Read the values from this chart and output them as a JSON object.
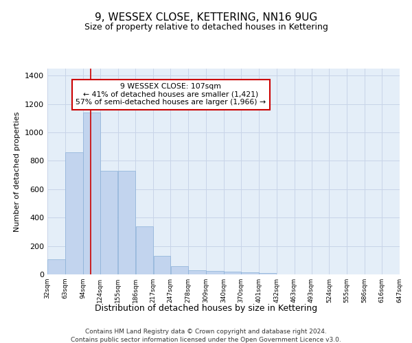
{
  "title": "9, WESSEX CLOSE, KETTERING, NN16 9UG",
  "subtitle": "Size of property relative to detached houses in Kettering",
  "xlabel": "Distribution of detached houses by size in Kettering",
  "ylabel": "Number of detached properties",
  "footer_line1": "Contains HM Land Registry data © Crown copyright and database right 2024.",
  "footer_line2": "Contains public sector information licensed under the Open Government Licence v3.0.",
  "bar_edges": [
    32,
    63,
    94,
    124,
    155,
    186,
    217,
    247,
    278,
    309,
    340,
    370,
    401,
    432,
    463,
    493,
    524,
    555,
    586,
    616,
    647
  ],
  "bar_heights": [
    105,
    860,
    1140,
    730,
    730,
    340,
    130,
    60,
    30,
    25,
    18,
    15,
    10,
    0,
    0,
    0,
    0,
    0,
    0,
    0
  ],
  "bar_color": "#c2d4ee",
  "bar_edge_color": "#8ab0d8",
  "red_line_x": 107,
  "annotation_title": "9 WESSEX CLOSE: 107sqm",
  "annotation_line1": "← 41% of detached houses are smaller (1,421)",
  "annotation_line2": "57% of semi-detached houses are larger (1,966) →",
  "annotation_box_color": "#ffffff",
  "annotation_box_edge_color": "#cc0000",
  "red_line_color": "#cc0000",
  "grid_color": "#c8d4e8",
  "background_color": "#e4eef8",
  "ylim": [
    0,
    1450
  ],
  "tick_labels": [
    "32sqm",
    "63sqm",
    "94sqm",
    "124sqm",
    "155sqm",
    "186sqm",
    "217sqm",
    "247sqm",
    "278sqm",
    "309sqm",
    "340sqm",
    "370sqm",
    "401sqm",
    "432sqm",
    "463sqm",
    "493sqm",
    "524sqm",
    "555sqm",
    "586sqm",
    "616sqm",
    "647sqm"
  ]
}
